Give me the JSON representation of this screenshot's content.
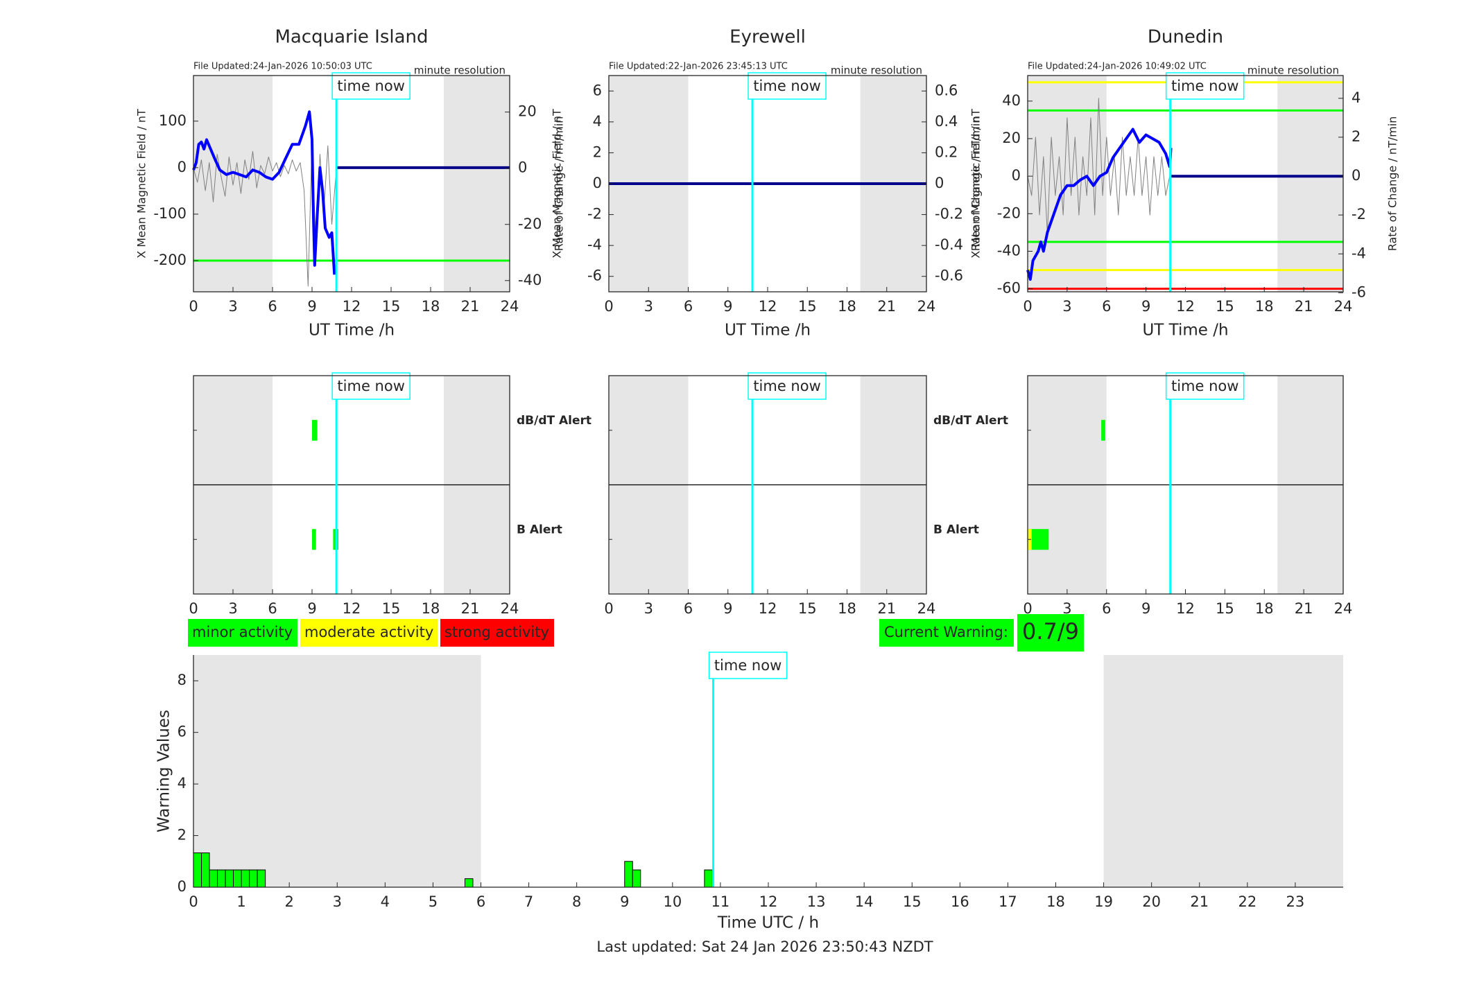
{
  "chart_data": [
    {
      "type": "line",
      "title": "Macquarie Island",
      "file_updated": "File Updated:24-Jan-2026 10:50:03 UTC",
      "resolution": "minute resolution",
      "xlabel": "UT Time /h",
      "ylabel": "X Mean Magnetic Field / nT",
      "y2label": "Rate of Change / nT/min",
      "xlim": [
        0,
        24
      ],
      "xticks": [
        0,
        3,
        6,
        9,
        12,
        15,
        18,
        21,
        24
      ],
      "ylim": [
        -267,
        198
      ],
      "yticks": [
        -200,
        -100,
        0,
        100
      ],
      "y2lim": [
        -44,
        33
      ],
      "y2ticks": [
        -40,
        -20,
        0,
        20
      ],
      "night": [
        [
          0,
          6
        ],
        [
          19,
          24
        ]
      ],
      "time_now": 10.85,
      "time_now_label": "time now",
      "thresholds": [
        {
          "value": -200,
          "color": "#00ff00"
        }
      ],
      "series": [
        {
          "color": "#808080",
          "axis": "y2",
          "x": [
            0,
            0.3,
            0.6,
            0.9,
            1.2,
            1.5,
            1.8,
            2.1,
            2.4,
            2.7,
            3,
            3.3,
            3.6,
            3.9,
            4.2,
            4.5,
            4.8,
            5.1,
            5.4,
            5.7,
            6,
            6.3,
            6.6,
            6.9,
            7.2,
            7.5,
            7.8,
            8.1,
            8.4,
            8.7,
            9,
            9.3,
            9.6,
            9.9,
            10.2,
            10.5,
            10.8
          ],
          "values": [
            0,
            -5,
            3,
            -8,
            2,
            -12,
            5,
            -3,
            -10,
            4,
            -6,
            2,
            -9,
            3,
            -4,
            6,
            -7,
            1,
            -2,
            4,
            -1,
            2,
            -3,
            1,
            -2,
            3,
            -1,
            2,
            -8,
            -42,
            10,
            -30,
            5,
            -15,
            8,
            -20,
            -3
          ]
        },
        {
          "color": "#0000ff",
          "x": [
            0,
            0.2,
            0.4,
            0.6,
            0.8,
            1,
            1.3,
            1.6,
            2,
            2.5,
            3,
            3.5,
            4,
            4.5,
            5,
            5.5,
            6,
            6.5,
            7,
            7.5,
            8,
            8.5,
            8.8,
            9,
            9.1,
            9.2,
            9.4,
            9.6,
            9.8,
            10,
            10.3,
            10.5,
            10.7
          ],
          "values": [
            -5,
            10,
            50,
            55,
            40,
            60,
            40,
            20,
            -5,
            -15,
            -10,
            -15,
            -20,
            -5,
            -10,
            -20,
            -25,
            -10,
            20,
            50,
            50,
            90,
            120,
            60,
            -100,
            -210,
            -100,
            0,
            -50,
            -130,
            -150,
            -140,
            -230
          ]
        },
        {
          "color": "#00008b",
          "x": [
            10.85,
            24
          ],
          "values": [
            0,
            0
          ]
        }
      ]
    },
    {
      "type": "line",
      "title": "Eyrewell",
      "file_updated": "File Updated:22-Jan-2026 23:45:13 UTC",
      "resolution": "minute resolution",
      "xlabel": "UT Time /h",
      "ylabel": "X Mean Magnetic Field / nT",
      "y2label": "Rate of Change / nT/min",
      "xlim": [
        0,
        24
      ],
      "xticks": [
        0,
        3,
        6,
        9,
        12,
        15,
        18,
        21,
        24
      ],
      "ylim": [
        -7,
        7
      ],
      "yticks": [
        -6,
        -4,
        -2,
        0,
        2,
        4,
        6
      ],
      "y2lim": [
        -0.7,
        0.7
      ],
      "y2ticks": [
        -0.6,
        -0.4,
        -0.2,
        0,
        0.2,
        0.4,
        0.6
      ],
      "night": [
        [
          0,
          6
        ],
        [
          19,
          24
        ]
      ],
      "time_now": 10.85,
      "time_now_label": "time now",
      "series": [
        {
          "color": "#00008b",
          "x": [
            0,
            24
          ],
          "values": [
            0,
            0
          ]
        }
      ]
    },
    {
      "type": "line",
      "title": "Dunedin",
      "file_updated": "File Updated:24-Jan-2026 10:49:02 UTC",
      "resolution": "minute resolution",
      "xlabel": "UT Time /h",
      "ylabel": "X Mean Magnetic Field / nT",
      "y2label": "Rate of Change / nT/min",
      "xlim": [
        0,
        24
      ],
      "xticks": [
        0,
        3,
        6,
        9,
        12,
        15,
        18,
        21,
        24
      ],
      "ylim": [
        -61.6,
        53.6
      ],
      "yticks": [
        -60,
        -40,
        -20,
        0,
        20,
        40
      ],
      "y2lim": [
        -5.95,
        5.17
      ],
      "y2ticks": [
        -6,
        -4,
        -2,
        0,
        2,
        4
      ],
      "night": [
        [
          0,
          6
        ],
        [
          19,
          24
        ]
      ],
      "time_now": 10.85,
      "time_now_label": "time now",
      "thresholds": [
        {
          "value": 50,
          "color": "#ffff00"
        },
        {
          "value": 35,
          "color": "#00ff00"
        },
        {
          "value": -35,
          "color": "#00ff00"
        },
        {
          "value": -50,
          "color": "#ffff00"
        },
        {
          "value": -60,
          "color": "#ff0000"
        }
      ],
      "series": [
        {
          "color": "#808080",
          "axis": "y2",
          "x": [
            0,
            0.3,
            0.6,
            0.9,
            1.2,
            1.5,
            1.8,
            2.1,
            2.4,
            2.7,
            3,
            3.3,
            3.6,
            3.9,
            4.2,
            4.5,
            4.8,
            5.1,
            5.4,
            5.7,
            6,
            6.3,
            6.6,
            6.9,
            7.2,
            7.5,
            7.8,
            8.1,
            8.4,
            8.7,
            9,
            9.3,
            9.6,
            9.9,
            10.2,
            10.5,
            10.8
          ],
          "values": [
            0,
            -1,
            2,
            -2,
            1,
            -3,
            2,
            -1,
            1,
            -2,
            3,
            -1,
            2,
            -2,
            1,
            -1,
            3,
            -2,
            4,
            -1,
            2,
            -1,
            1,
            -2,
            2,
            -1,
            1,
            -1,
            2,
            -1,
            1,
            -2,
            1,
            -1,
            1,
            -1,
            0
          ]
        },
        {
          "color": "#0000ff",
          "x": [
            0,
            0.2,
            0.4,
            0.8,
            1,
            1.2,
            1.5,
            2,
            2.5,
            3,
            3.5,
            4,
            4.5,
            5,
            5.5,
            6,
            6.5,
            7,
            7.5,
            8,
            8.5,
            9,
            9.5,
            10,
            10.5,
            10.8,
            10.9
          ],
          "values": [
            -50,
            -55,
            -45,
            -40,
            -35,
            -40,
            -30,
            -20,
            -10,
            -5,
            -5,
            -2,
            0,
            -5,
            0,
            2,
            10,
            15,
            20,
            25,
            18,
            22,
            20,
            18,
            12,
            5,
            15
          ]
        },
        {
          "color": "#00008b",
          "x": [
            10.9,
            24
          ],
          "values": [
            0,
            0
          ]
        }
      ]
    },
    {
      "type": "alert",
      "xlim": [
        0,
        24
      ],
      "xticks": [
        0,
        3,
        6,
        9,
        12,
        15,
        18,
        21,
        24
      ],
      "night": [
        [
          0,
          6
        ],
        [
          19,
          24
        ]
      ],
      "time_now": 10.85,
      "time_now_label": "time now",
      "rows": [
        {
          "label": "dB/dT Alert",
          "color": "#000000"
        },
        {
          "label": "B Alert",
          "color": "#0000ff"
        }
      ],
      "events": [
        {
          "row": 0,
          "start": 9.0,
          "end": 9.4,
          "color": "#00ff00"
        },
        {
          "row": 1,
          "start": 9.0,
          "end": 9.3,
          "color": "#00ff00"
        },
        {
          "row": 1,
          "start": 10.6,
          "end": 11.0,
          "color": "#00ff00"
        }
      ]
    },
    {
      "type": "alert",
      "xlim": [
        0,
        24
      ],
      "xticks": [
        0,
        3,
        6,
        9,
        12,
        15,
        18,
        21,
        24
      ],
      "night": [
        [
          0,
          6
        ],
        [
          19,
          24
        ]
      ],
      "time_now": 10.85,
      "time_now_label": "time now",
      "rows": [
        {
          "label": "dB/dT Alert",
          "color": "#000000"
        },
        {
          "label": "B Alert",
          "color": "#0000ff"
        }
      ],
      "events": []
    },
    {
      "type": "alert",
      "xlim": [
        0,
        24
      ],
      "xticks": [
        0,
        3,
        6,
        9,
        12,
        15,
        18,
        21,
        24
      ],
      "night": [
        [
          0,
          6
        ],
        [
          19,
          24
        ]
      ],
      "time_now": 10.85,
      "time_now_label": "time now",
      "events": [
        {
          "row": 0,
          "start": 5.6,
          "end": 5.9,
          "color": "#00ff00"
        },
        {
          "row": 1,
          "start": 0,
          "end": 1.6,
          "color": "#00ff00"
        },
        {
          "row": 1,
          "start": 0,
          "end": 0.3,
          "color": "#ffff00"
        }
      ]
    },
    {
      "type": "bar",
      "xlabel": "Time UTC / h",
      "ylabel": "Warning Values",
      "xlim": [
        0,
        24
      ],
      "xticks": [
        0,
        1,
        2,
        3,
        4,
        5,
        6,
        7,
        8,
        9,
        10,
        11,
        12,
        13,
        14,
        15,
        16,
        17,
        18,
        19,
        20,
        21,
        22,
        23
      ],
      "ylim": [
        0,
        9
      ],
      "yticks": [
        0,
        2,
        4,
        6,
        8
      ],
      "night": [
        [
          0,
          6
        ],
        [
          19,
          24
        ]
      ],
      "time_now": 10.85,
      "time_now_label": "time now",
      "color": "#00ff00",
      "bars": [
        {
          "start": 0,
          "end": 0.167,
          "value": 1.33
        },
        {
          "start": 0.167,
          "end": 0.333,
          "value": 1.33
        },
        {
          "start": 0.333,
          "end": 0.5,
          "value": 0.67
        },
        {
          "start": 0.5,
          "end": 0.667,
          "value": 0.67
        },
        {
          "start": 0.667,
          "end": 0.833,
          "value": 0.67
        },
        {
          "start": 0.833,
          "end": 1.0,
          "value": 0.67
        },
        {
          "start": 1.0,
          "end": 1.167,
          "value": 0.67
        },
        {
          "start": 1.167,
          "end": 1.333,
          "value": 0.67
        },
        {
          "start": 1.333,
          "end": 1.5,
          "value": 0.67
        },
        {
          "start": 5.667,
          "end": 5.833,
          "value": 0.33
        },
        {
          "start": 9.0,
          "end": 9.167,
          "value": 1.0
        },
        {
          "start": 9.167,
          "end": 9.333,
          "value": 0.67
        },
        {
          "start": 10.667,
          "end": 10.833,
          "value": 0.67
        }
      ]
    }
  ],
  "legend": [
    {
      "label": "minor activity",
      "color": "#00ff00"
    },
    {
      "label": "moderate activity",
      "color": "#ffff00"
    },
    {
      "label": "strong activity",
      "color": "#ff0000"
    }
  ],
  "current_warning": {
    "label": "Current Warning:",
    "value": "0.7/9",
    "color": "#00ff00"
  },
  "footer": "Last updated: Sat 24 Jan 2026 23:50:43 NZDT"
}
